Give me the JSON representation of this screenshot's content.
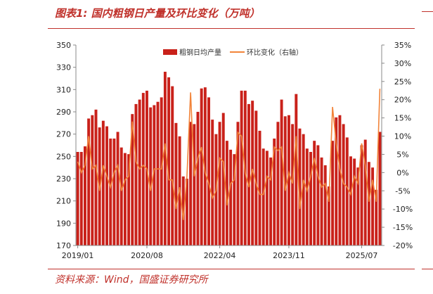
{
  "figure": {
    "title": "图表1:  国内粗钢日产量及环比变化（万吨）",
    "source": "资料来源：Wind，国盛证券研究所"
  },
  "colors": {
    "accent": "#c0312b",
    "bar": "#c9211a",
    "line": "#f2843a"
  },
  "chart_data": {
    "type": "bar",
    "title": "图表1:  国内粗钢日产量及环比变化（万吨）",
    "xlabel": "",
    "ylabel_left": "",
    "ylabel_right": "",
    "ylim": [
      170,
      350
    ],
    "y2lim": [
      -20,
      35
    ],
    "yticks": [
      "350",
      "330",
      "310",
      "290",
      "270",
      "250",
      "230",
      "210",
      "190",
      "170"
    ],
    "y2ticks": [
      "35%",
      "30%",
      "25%",
      "20%",
      "15%",
      "10%",
      "5%",
      "0%",
      "-5%",
      "-10%",
      "-15%",
      "-20%"
    ],
    "xticks": [
      "2019/01",
      "2020/08",
      "2022/04",
      "2023/11",
      "2025/07"
    ],
    "legend_position": "top-center",
    "grid": false,
    "series": [
      {
        "name": "粗钢日均产量",
        "type": "bar",
        "axis": "left",
        "values": [
          254,
          254,
          259,
          284,
          287,
          292,
          276,
          282,
          277,
          266,
          266,
          272,
          258,
          253,
          252,
          288,
          297,
          301,
          307,
          309,
          294,
          296,
          299,
          303,
          326,
          321,
          313,
          280,
          268,
          232,
          230,
          281,
          279,
          290,
          311,
          312,
          303,
          283,
          270,
          281,
          289,
          264,
          256,
          252,
          281,
          309,
          309,
          297,
          300,
          291,
          273,
          257,
          255,
          249,
          266,
          281,
          301,
          286,
          287,
          279,
          306,
          275,
          270,
          257,
          254,
          264,
          260,
          249,
          242,
          223,
          264,
          285,
          287,
          279,
          267,
          250,
          248,
          240,
          260,
          265,
          245,
          240,
          220,
          272
        ]
      },
      {
        "name": "环比变化（右轴）",
        "type": "line",
        "axis": "right",
        "values": [
          3,
          0,
          2,
          10,
          1,
          2,
          -5,
          2,
          -1,
          -4,
          0,
          2,
          -5,
          -2,
          -1,
          14,
          3,
          1,
          2,
          1,
          -5,
          1,
          1,
          1,
          8,
          -2,
          -2,
          -10,
          -4,
          -13,
          -1,
          22,
          -1,
          4,
          7,
          0,
          -3,
          -7,
          -5,
          4,
          3,
          -9,
          -3,
          -2,
          11,
          10,
          0,
          -4,
          1,
          -3,
          -6,
          -6,
          -1,
          -2,
          7,
          6,
          7,
          -5,
          0,
          -3,
          10,
          -10,
          -2,
          -5,
          -1,
          4,
          -1,
          -4,
          -3,
          -8,
          18,
          8,
          1,
          -3,
          -4,
          -6,
          -1,
          -3,
          8,
          2,
          -8,
          -2,
          -8,
          23
        ]
      }
    ]
  }
}
